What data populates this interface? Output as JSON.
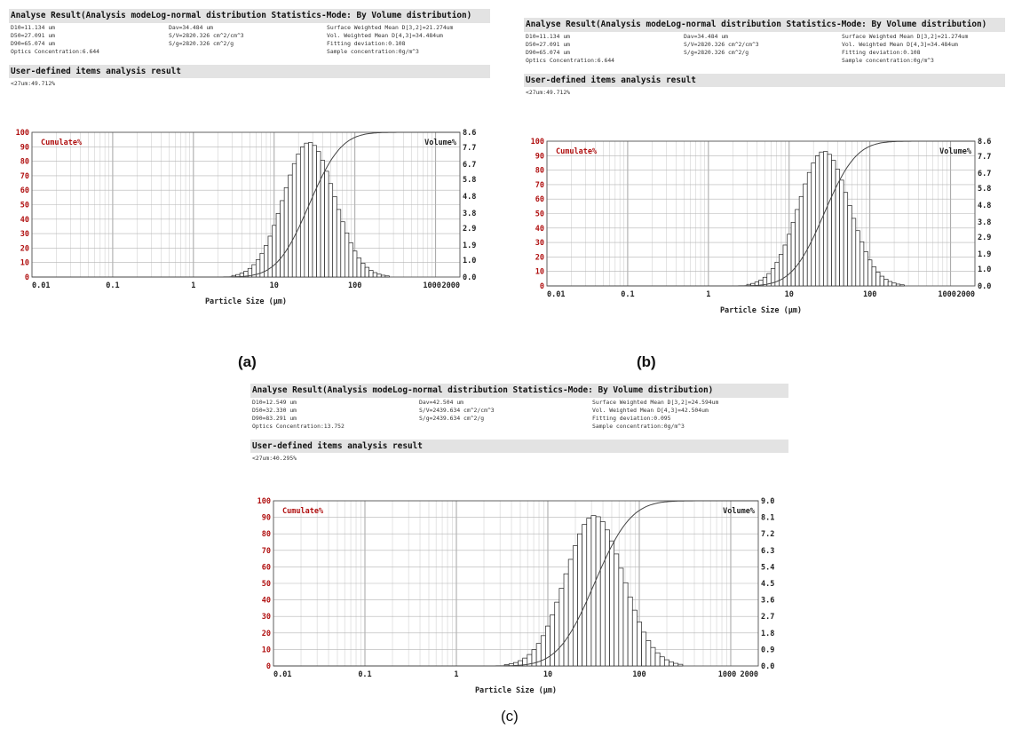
{
  "panels": [
    {
      "header": "Analyse Result(Analysis modeLog-normal distribution   Statistics-Mode: By Volume distribution)",
      "info_col1": [
        "D10=11.134 um",
        "D50=27.091 um",
        "D90=65.074 um",
        "Optics Concentration:6.644"
      ],
      "info_col2": [
        "Dav=34.484 um",
        "S/V=2820.326 cm^2/cm^3",
        "S/g=2820.326 cm^2/g"
      ],
      "info_col3": [
        "Surface Weighted Mean D[3,2]=21.274um",
        "Vol. Weighted Mean D[4,3]=34.484um",
        "Fitting deviation:0.108",
        "Sample concentration:0g/m^3"
      ],
      "user_header": "User-defined items analysis result",
      "user_value": "<27um:49.712%",
      "caption": "(a)"
    },
    {
      "header": "Analyse Result(Analysis modeLog-normal distribution   Statistics-Mode: By Volume distribution)",
      "info_col1": [
        "D10=11.134 um",
        "D50=27.091 um",
        "D90=65.074 um",
        "Optics Concentration:6.644"
      ],
      "info_col2": [
        "Dav=34.484 um",
        "S/V=2820.326 cm^2/cm^3",
        "S/g=2820.326 cm^2/g"
      ],
      "info_col3": [
        "Surface Weighted Mean D[3,2]=21.274um",
        "Vol. Weighted Mean D[4,3]=34.484um",
        "Fitting deviation:0.108",
        "Sample concentration:0g/m^3"
      ],
      "user_header": "User-defined items analysis result",
      "user_value": "<27um:49.712%",
      "caption": "(b)"
    },
    {
      "header": "Analyse Result(Analysis modeLog-normal distribution   Statistics-Mode: By Volume distribution)",
      "info_col1": [
        "D10=12.549 um",
        "D50=32.330 um",
        "D90=83.291 um",
        "Optics Concentration:13.752"
      ],
      "info_col2": [
        "Dav=42.504 um",
        "S/V=2439.634 cm^2/cm^3",
        "S/g=2439.634 cm^2/g"
      ],
      "info_col3": [
        "Surface Weighted Mean D[3,2]=24.594um",
        "Vol. Weighted Mean D[4,3]=42.504um",
        "Fitting deviation:0.095",
        "Sample concentration:0g/m^3"
      ],
      "user_header": "User-defined items analysis result",
      "user_value": "<27um:40.295%",
      "caption": "(c)"
    }
  ],
  "colors": {
    "header_bg": "#e3e3e3",
    "grid": "#c8c8c8",
    "axis_red": "#b01010",
    "bars": "#222222"
  },
  "chart_data": [
    {
      "type": "bar",
      "xscale": "log",
      "xlim": [
        0.01,
        2000
      ],
      "xticks": [
        "0.01",
        "0.1",
        "1",
        "10",
        "100",
        "1000",
        "2000"
      ],
      "xlabel": "Particle Size (µm)",
      "left_axis_label": "Cumulate%",
      "right_axis_label": "Volume%",
      "ylim_left": [
        0,
        100
      ],
      "yticks_left": [
        "0",
        "10",
        "20",
        "30",
        "40",
        "50",
        "60",
        "70",
        "80",
        "90",
        "100"
      ],
      "ylim_right": [
        0,
        8.6
      ],
      "yticks_right": [
        "0.0",
        "1.0",
        "1.9",
        "2.9",
        "3.8",
        "4.8",
        "5.8",
        "6.7",
        "7.7",
        "8.6"
      ],
      "distribution": {
        "median_um": 27.091,
        "peak_volume_pct": 8.0
      },
      "grid": true
    },
    {
      "type": "bar",
      "xscale": "log",
      "xlim": [
        0.01,
        2000
      ],
      "xticks": [
        "0.01",
        "0.1",
        "1",
        "10",
        "100",
        "1000",
        "2000"
      ],
      "xlabel": "Particle Size (µm)",
      "left_axis_label": "Cumulate%",
      "right_axis_label": "Volume%",
      "ylim_left": [
        0,
        100
      ],
      "yticks_left": [
        "0",
        "10",
        "20",
        "30",
        "40",
        "50",
        "60",
        "70",
        "80",
        "90",
        "100"
      ],
      "ylim_right": [
        0,
        8.6
      ],
      "yticks_right": [
        "0.0",
        "1.0",
        "1.9",
        "2.9",
        "3.8",
        "4.8",
        "5.8",
        "6.7",
        "7.7",
        "8.6"
      ],
      "distribution": {
        "median_um": 27.091,
        "peak_volume_pct": 8.0
      },
      "grid": true
    },
    {
      "type": "bar",
      "xscale": "log",
      "xlim": [
        0.01,
        2000
      ],
      "xticks": [
        "0.01",
        "0.1",
        "1",
        "10",
        "100",
        "1000",
        "2000"
      ],
      "xlabel": "Particle Size (µm)",
      "left_axis_label": "Cumulate%",
      "right_axis_label": "Volume%",
      "ylim_left": [
        0,
        100
      ],
      "yticks_left": [
        "0",
        "10",
        "20",
        "30",
        "40",
        "50",
        "60",
        "70",
        "80",
        "90",
        "100"
      ],
      "ylim_right": [
        0,
        9.0
      ],
      "yticks_right": [
        "0.0",
        "0.9",
        "1.8",
        "2.7",
        "3.6",
        "4.5",
        "5.4",
        "6.3",
        "7.2",
        "8.1",
        "9.0"
      ],
      "distribution": {
        "median_um": 32.33,
        "peak_volume_pct": 8.2
      },
      "grid": true
    }
  ]
}
